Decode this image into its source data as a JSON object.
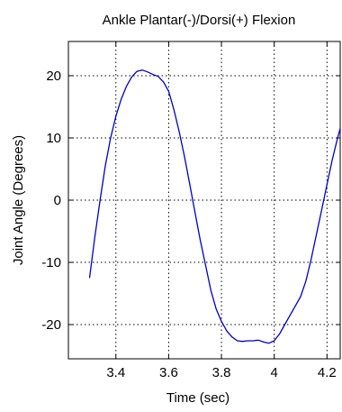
{
  "chart_data": {
    "type": "line",
    "title": "Ankle Plantar(-)/Dorsi(+) Flexion",
    "xlabel": "Time (sec)",
    "ylabel": "Joint Angle (Degrees)",
    "xlim": [
      3.22,
      4.25
    ],
    "ylim": [
      -25.5,
      25.5
    ],
    "grid": true,
    "legend": "none",
    "x_ticks": [
      3.4,
      3.6,
      3.8,
      4,
      4.2
    ],
    "x_tick_labels": [
      "3.4",
      "3.6",
      "3.8",
      "4",
      "4.2"
    ],
    "y_ticks": [
      -20,
      -10,
      0,
      10,
      20
    ],
    "y_tick_labels": [
      "-20",
      "-10",
      "0",
      "10",
      "20"
    ],
    "series": [
      {
        "color": "#0000cc",
        "x": [
          3.3,
          3.32,
          3.34,
          3.36,
          3.38,
          3.4,
          3.42,
          3.44,
          3.46,
          3.48,
          3.5,
          3.52,
          3.54,
          3.56,
          3.58,
          3.6,
          3.62,
          3.64,
          3.66,
          3.68,
          3.7,
          3.72,
          3.74,
          3.76,
          3.78,
          3.8,
          3.82,
          3.84,
          3.86,
          3.88,
          3.9,
          3.92,
          3.94,
          3.96,
          3.98,
          4.0,
          4.02,
          4.04,
          4.06,
          4.08,
          4.1,
          4.12,
          4.14,
          4.16,
          4.18,
          4.2,
          4.22,
          4.24,
          4.25
        ],
        "y": [
          -12.5,
          -6.0,
          0.0,
          5.5,
          10.0,
          13.5,
          16.2,
          18.3,
          19.8,
          20.7,
          20.9,
          20.6,
          20.2,
          19.9,
          19.0,
          17.5,
          14.5,
          11.0,
          7.0,
          2.5,
          -2.0,
          -6.5,
          -10.5,
          -14.5,
          -17.5,
          -19.5,
          -21.0,
          -22.0,
          -22.6,
          -22.7,
          -22.6,
          -22.6,
          -22.5,
          -22.8,
          -23.0,
          -22.6,
          -21.5,
          -20.0,
          -18.5,
          -17.0,
          -15.5,
          -13.0,
          -9.5,
          -5.5,
          -1.5,
          2.5,
          6.5,
          10.0,
          11.5
        ]
      }
    ]
  }
}
